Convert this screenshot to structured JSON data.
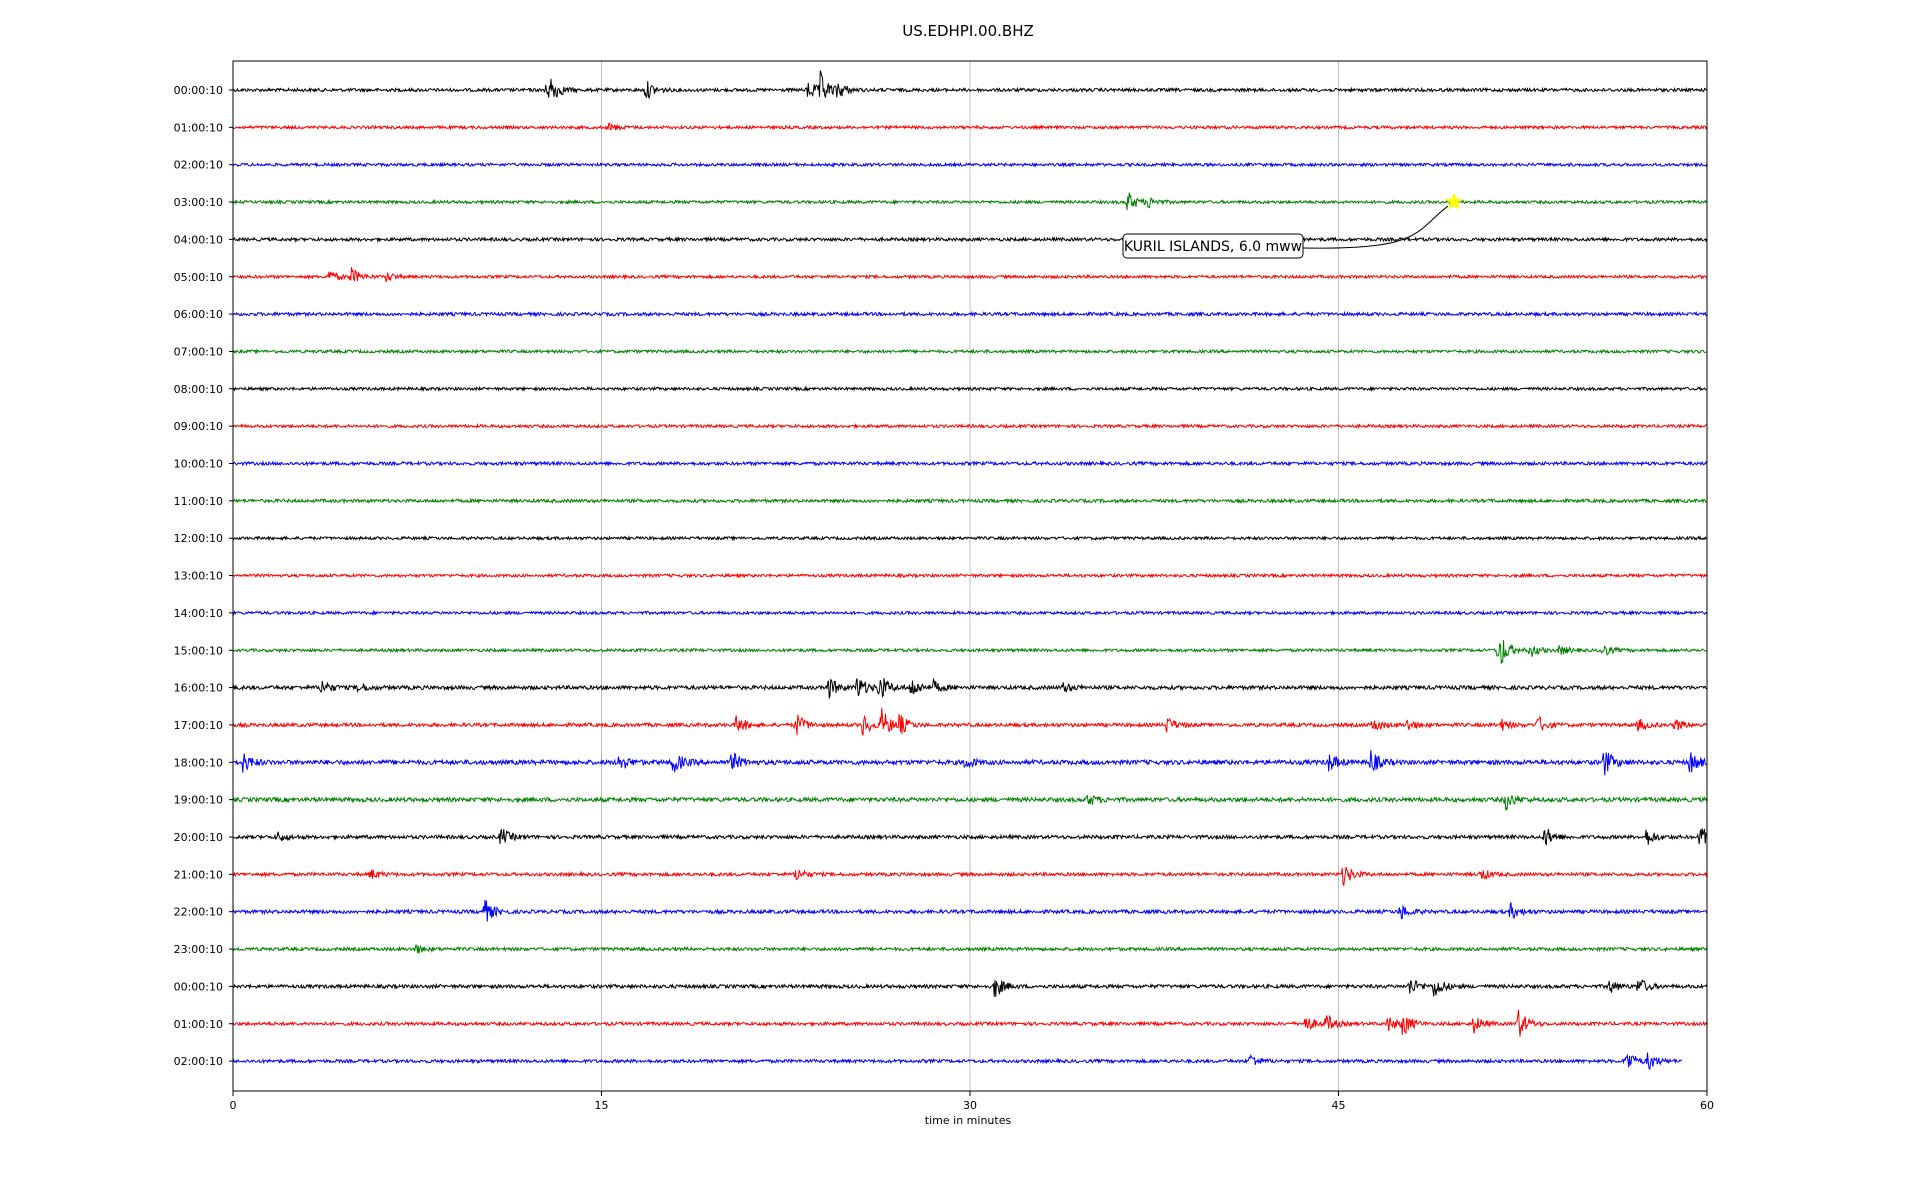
{
  "chart_data": {
    "type": "line",
    "title": "US.EDHPI.00.BHZ",
    "xlabel": "time in minutes",
    "ylabel": "",
    "xlim": [
      0,
      60
    ],
    "x_ticks": [
      0,
      15,
      30,
      45,
      60
    ],
    "x_tick_labels": [
      "0",
      "15",
      "30",
      "45",
      "60"
    ],
    "grid": "vertical",
    "color_cycle": [
      "#000000",
      "#ff0000",
      "#0000ff",
      "#008000"
    ],
    "rows": [
      {
        "label": "00:00:10",
        "noise": 1.0,
        "end": 60,
        "events": [
          [
            12.6,
            6
          ],
          [
            12.9,
            14
          ],
          [
            16.8,
            10
          ],
          [
            23.4,
            10
          ],
          [
            23.9,
            16
          ],
          [
            24.6,
            8
          ]
        ]
      },
      {
        "label": "01:00:10",
        "noise": 0.9,
        "end": 60,
        "events": [
          [
            15.3,
            4
          ]
        ]
      },
      {
        "label": "02:00:10",
        "noise": 0.9,
        "end": 60,
        "events": []
      },
      {
        "label": "03:00:10",
        "noise": 0.9,
        "end": 60,
        "events": [
          [
            36.4,
            11
          ],
          [
            37.2,
            6
          ]
        ]
      },
      {
        "label": "04:00:10",
        "noise": 1.0,
        "end": 60,
        "events": []
      },
      {
        "label": "05:00:10",
        "noise": 0.9,
        "end": 60,
        "events": [
          [
            3.9,
            6
          ],
          [
            4.8,
            9
          ],
          [
            6.2,
            5
          ]
        ]
      },
      {
        "label": "06:00:10",
        "noise": 1.0,
        "end": 60,
        "events": []
      },
      {
        "label": "07:00:10",
        "noise": 0.9,
        "end": 60,
        "events": []
      },
      {
        "label": "08:00:10",
        "noise": 0.9,
        "end": 60,
        "events": []
      },
      {
        "label": "09:00:10",
        "noise": 0.9,
        "end": 60,
        "events": []
      },
      {
        "label": "10:00:10",
        "noise": 1.0,
        "end": 60,
        "events": []
      },
      {
        "label": "11:00:10",
        "noise": 1.0,
        "end": 60,
        "events": []
      },
      {
        "label": "12:00:10",
        "noise": 0.9,
        "end": 60,
        "events": []
      },
      {
        "label": "13:00:10",
        "noise": 0.9,
        "end": 60,
        "events": []
      },
      {
        "label": "14:00:10",
        "noise": 0.9,
        "end": 60,
        "events": []
      },
      {
        "label": "15:00:10",
        "noise": 0.9,
        "end": 60,
        "events": [
          [
            51.5,
            22
          ],
          [
            52.8,
            7
          ],
          [
            54.0,
            5
          ],
          [
            55.7,
            7
          ]
        ]
      },
      {
        "label": "16:00:10",
        "noise": 1.2,
        "end": 60,
        "events": [
          [
            3.6,
            8
          ],
          [
            5.1,
            5
          ],
          [
            24.2,
            12
          ],
          [
            25.4,
            12
          ],
          [
            26.3,
            14
          ],
          [
            27.6,
            10
          ],
          [
            28.5,
            6
          ],
          [
            33.8,
            5
          ]
        ]
      },
      {
        "label": "17:00:10",
        "noise": 1.1,
        "end": 60,
        "events": [
          [
            20.5,
            10
          ],
          [
            22.9,
            12
          ],
          [
            25.6,
            12
          ],
          [
            26.4,
            16
          ],
          [
            27.1,
            10
          ],
          [
            38.0,
            8
          ],
          [
            46.4,
            7
          ],
          [
            47.8,
            6
          ],
          [
            51.6,
            6
          ],
          [
            53.1,
            9
          ],
          [
            57.2,
            6
          ],
          [
            58.7,
            6
          ]
        ]
      },
      {
        "label": "18:00:10",
        "noise": 1.4,
        "end": 60,
        "events": [
          [
            0.4,
            10
          ],
          [
            15.7,
            9
          ],
          [
            17.9,
            12
          ],
          [
            20.3,
            10
          ],
          [
            29.8,
            6
          ],
          [
            44.6,
            9
          ],
          [
            46.3,
            12
          ],
          [
            55.8,
            14
          ],
          [
            59.3,
            12
          ]
        ]
      },
      {
        "label": "19:00:10",
        "noise": 1.3,
        "end": 60,
        "events": [
          [
            34.8,
            6
          ],
          [
            51.8,
            10
          ]
        ]
      },
      {
        "label": "20:00:10",
        "noise": 1.1,
        "end": 60,
        "events": [
          [
            1.8,
            5
          ],
          [
            10.9,
            9
          ],
          [
            53.4,
            10
          ],
          [
            57.5,
            9
          ],
          [
            59.7,
            12
          ]
        ]
      },
      {
        "label": "21:00:10",
        "noise": 1.0,
        "end": 60,
        "events": [
          [
            5.6,
            5
          ],
          [
            22.9,
            7
          ],
          [
            45.2,
            12
          ],
          [
            50.8,
            6
          ]
        ]
      },
      {
        "label": "22:00:10",
        "noise": 1.1,
        "end": 60,
        "events": [
          [
            10.2,
            14
          ],
          [
            47.5,
            8
          ],
          [
            52.0,
            8
          ]
        ]
      },
      {
        "label": "23:00:10",
        "noise": 1.0,
        "end": 60,
        "events": [
          [
            7.4,
            5
          ]
        ]
      },
      {
        "label": "00:00:10",
        "noise": 1.1,
        "end": 60,
        "events": [
          [
            31.0,
            12
          ],
          [
            47.9,
            9
          ],
          [
            48.9,
            12
          ],
          [
            56.0,
            7
          ],
          [
            57.2,
            9
          ]
        ]
      },
      {
        "label": "01:00:10",
        "noise": 1.0,
        "end": 60,
        "events": [
          [
            43.6,
            10
          ],
          [
            44.5,
            9
          ],
          [
            47.0,
            8
          ],
          [
            47.6,
            12
          ],
          [
            50.5,
            9
          ],
          [
            52.3,
            16
          ]
        ]
      },
      {
        "label": "02:00:10",
        "noise": 1.0,
        "end": 59,
        "events": [
          [
            41.4,
            7
          ],
          [
            56.7,
            12
          ],
          [
            57.6,
            9
          ]
        ]
      }
    ],
    "annotation": {
      "text": "KURIL ISLANDS, 6.0 mww",
      "marker": "star",
      "marker_color": "#ffff00",
      "row_index": 3,
      "x": 49.7
    }
  }
}
